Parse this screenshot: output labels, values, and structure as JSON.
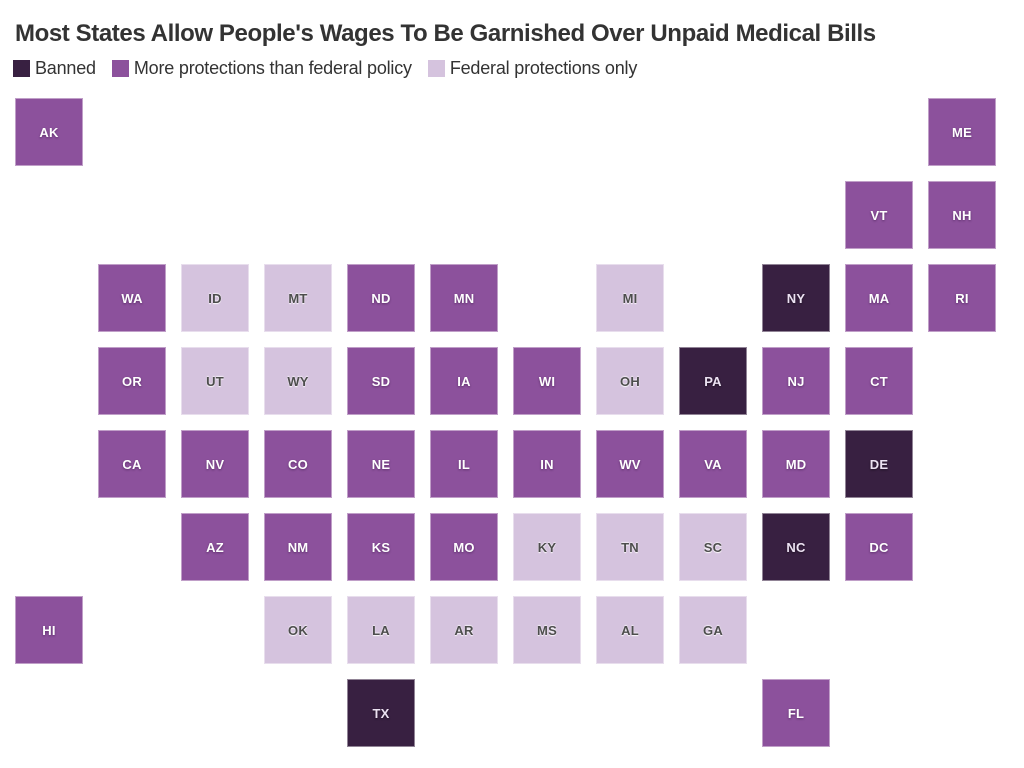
{
  "title": "Most States Allow People's Wages To Be Garnished Over Unpaid Medical Bills",
  "colors": {
    "banned": "#382041",
    "more": "#8c519c",
    "federal": "#d5c3de",
    "heading_text": "#333333",
    "legend_text": "#333333",
    "tile_label_on_dark": "#ffffff",
    "tile_label_on_light": "#4d4d4d"
  },
  "chart_data": {
    "type": "tile-grid-map",
    "title": "Most States Allow People's Wages To Be Garnished Over Unpaid Medical Bills",
    "legend_position": "top-left",
    "grid": {
      "rows": 8,
      "cols": 12
    },
    "categories": [
      {
        "key": "banned",
        "label": "Banned",
        "color": "#382041"
      },
      {
        "key": "more",
        "label": "More protections than federal policy",
        "color": "#8c519c"
      },
      {
        "key": "federal",
        "label": "Federal protections only",
        "color": "#d5c3de"
      }
    ],
    "tiles": [
      {
        "state": "AK",
        "row": 0,
        "col": 0,
        "category": "more"
      },
      {
        "state": "ME",
        "row": 0,
        "col": 11,
        "category": "more"
      },
      {
        "state": "VT",
        "row": 1,
        "col": 10,
        "category": "more"
      },
      {
        "state": "NH",
        "row": 1,
        "col": 11,
        "category": "more"
      },
      {
        "state": "WA",
        "row": 2,
        "col": 1,
        "category": "more"
      },
      {
        "state": "ID",
        "row": 2,
        "col": 2,
        "category": "federal"
      },
      {
        "state": "MT",
        "row": 2,
        "col": 3,
        "category": "federal"
      },
      {
        "state": "ND",
        "row": 2,
        "col": 4,
        "category": "more"
      },
      {
        "state": "MN",
        "row": 2,
        "col": 5,
        "category": "more"
      },
      {
        "state": "MI",
        "row": 2,
        "col": 7,
        "category": "federal"
      },
      {
        "state": "NY",
        "row": 2,
        "col": 9,
        "category": "banned"
      },
      {
        "state": "MA",
        "row": 2,
        "col": 10,
        "category": "more"
      },
      {
        "state": "RI",
        "row": 2,
        "col": 11,
        "category": "more"
      },
      {
        "state": "OR",
        "row": 3,
        "col": 1,
        "category": "more"
      },
      {
        "state": "UT",
        "row": 3,
        "col": 2,
        "category": "federal"
      },
      {
        "state": "WY",
        "row": 3,
        "col": 3,
        "category": "federal"
      },
      {
        "state": "SD",
        "row": 3,
        "col": 4,
        "category": "more"
      },
      {
        "state": "IA",
        "row": 3,
        "col": 5,
        "category": "more"
      },
      {
        "state": "WI",
        "row": 3,
        "col": 6,
        "category": "more"
      },
      {
        "state": "OH",
        "row": 3,
        "col": 7,
        "category": "federal"
      },
      {
        "state": "PA",
        "row": 3,
        "col": 8,
        "category": "banned"
      },
      {
        "state": "NJ",
        "row": 3,
        "col": 9,
        "category": "more"
      },
      {
        "state": "CT",
        "row": 3,
        "col": 10,
        "category": "more"
      },
      {
        "state": "CA",
        "row": 4,
        "col": 1,
        "category": "more"
      },
      {
        "state": "NV",
        "row": 4,
        "col": 2,
        "category": "more"
      },
      {
        "state": "CO",
        "row": 4,
        "col": 3,
        "category": "more"
      },
      {
        "state": "NE",
        "row": 4,
        "col": 4,
        "category": "more"
      },
      {
        "state": "IL",
        "row": 4,
        "col": 5,
        "category": "more"
      },
      {
        "state": "IN",
        "row": 4,
        "col": 6,
        "category": "more"
      },
      {
        "state": "WV",
        "row": 4,
        "col": 7,
        "category": "more"
      },
      {
        "state": "VA",
        "row": 4,
        "col": 8,
        "category": "more"
      },
      {
        "state": "MD",
        "row": 4,
        "col": 9,
        "category": "more"
      },
      {
        "state": "DE",
        "row": 4,
        "col": 10,
        "category": "banned"
      },
      {
        "state": "AZ",
        "row": 5,
        "col": 2,
        "category": "more"
      },
      {
        "state": "NM",
        "row": 5,
        "col": 3,
        "category": "more"
      },
      {
        "state": "KS",
        "row": 5,
        "col": 4,
        "category": "more"
      },
      {
        "state": "MO",
        "row": 5,
        "col": 5,
        "category": "more"
      },
      {
        "state": "KY",
        "row": 5,
        "col": 6,
        "category": "federal"
      },
      {
        "state": "TN",
        "row": 5,
        "col": 7,
        "category": "federal"
      },
      {
        "state": "SC",
        "row": 5,
        "col": 8,
        "category": "federal"
      },
      {
        "state": "NC",
        "row": 5,
        "col": 9,
        "category": "banned"
      },
      {
        "state": "DC",
        "row": 5,
        "col": 10,
        "category": "more"
      },
      {
        "state": "HI",
        "row": 6,
        "col": 0,
        "category": "more"
      },
      {
        "state": "OK",
        "row": 6,
        "col": 3,
        "category": "federal"
      },
      {
        "state": "LA",
        "row": 6,
        "col": 4,
        "category": "federal"
      },
      {
        "state": "AR",
        "row": 6,
        "col": 5,
        "category": "federal"
      },
      {
        "state": "MS",
        "row": 6,
        "col": 6,
        "category": "federal"
      },
      {
        "state": "AL",
        "row": 6,
        "col": 7,
        "category": "federal"
      },
      {
        "state": "GA",
        "row": 6,
        "col": 8,
        "category": "federal"
      },
      {
        "state": "TX",
        "row": 7,
        "col": 4,
        "category": "banned"
      },
      {
        "state": "FL",
        "row": 7,
        "col": 9,
        "category": "more"
      }
    ]
  }
}
